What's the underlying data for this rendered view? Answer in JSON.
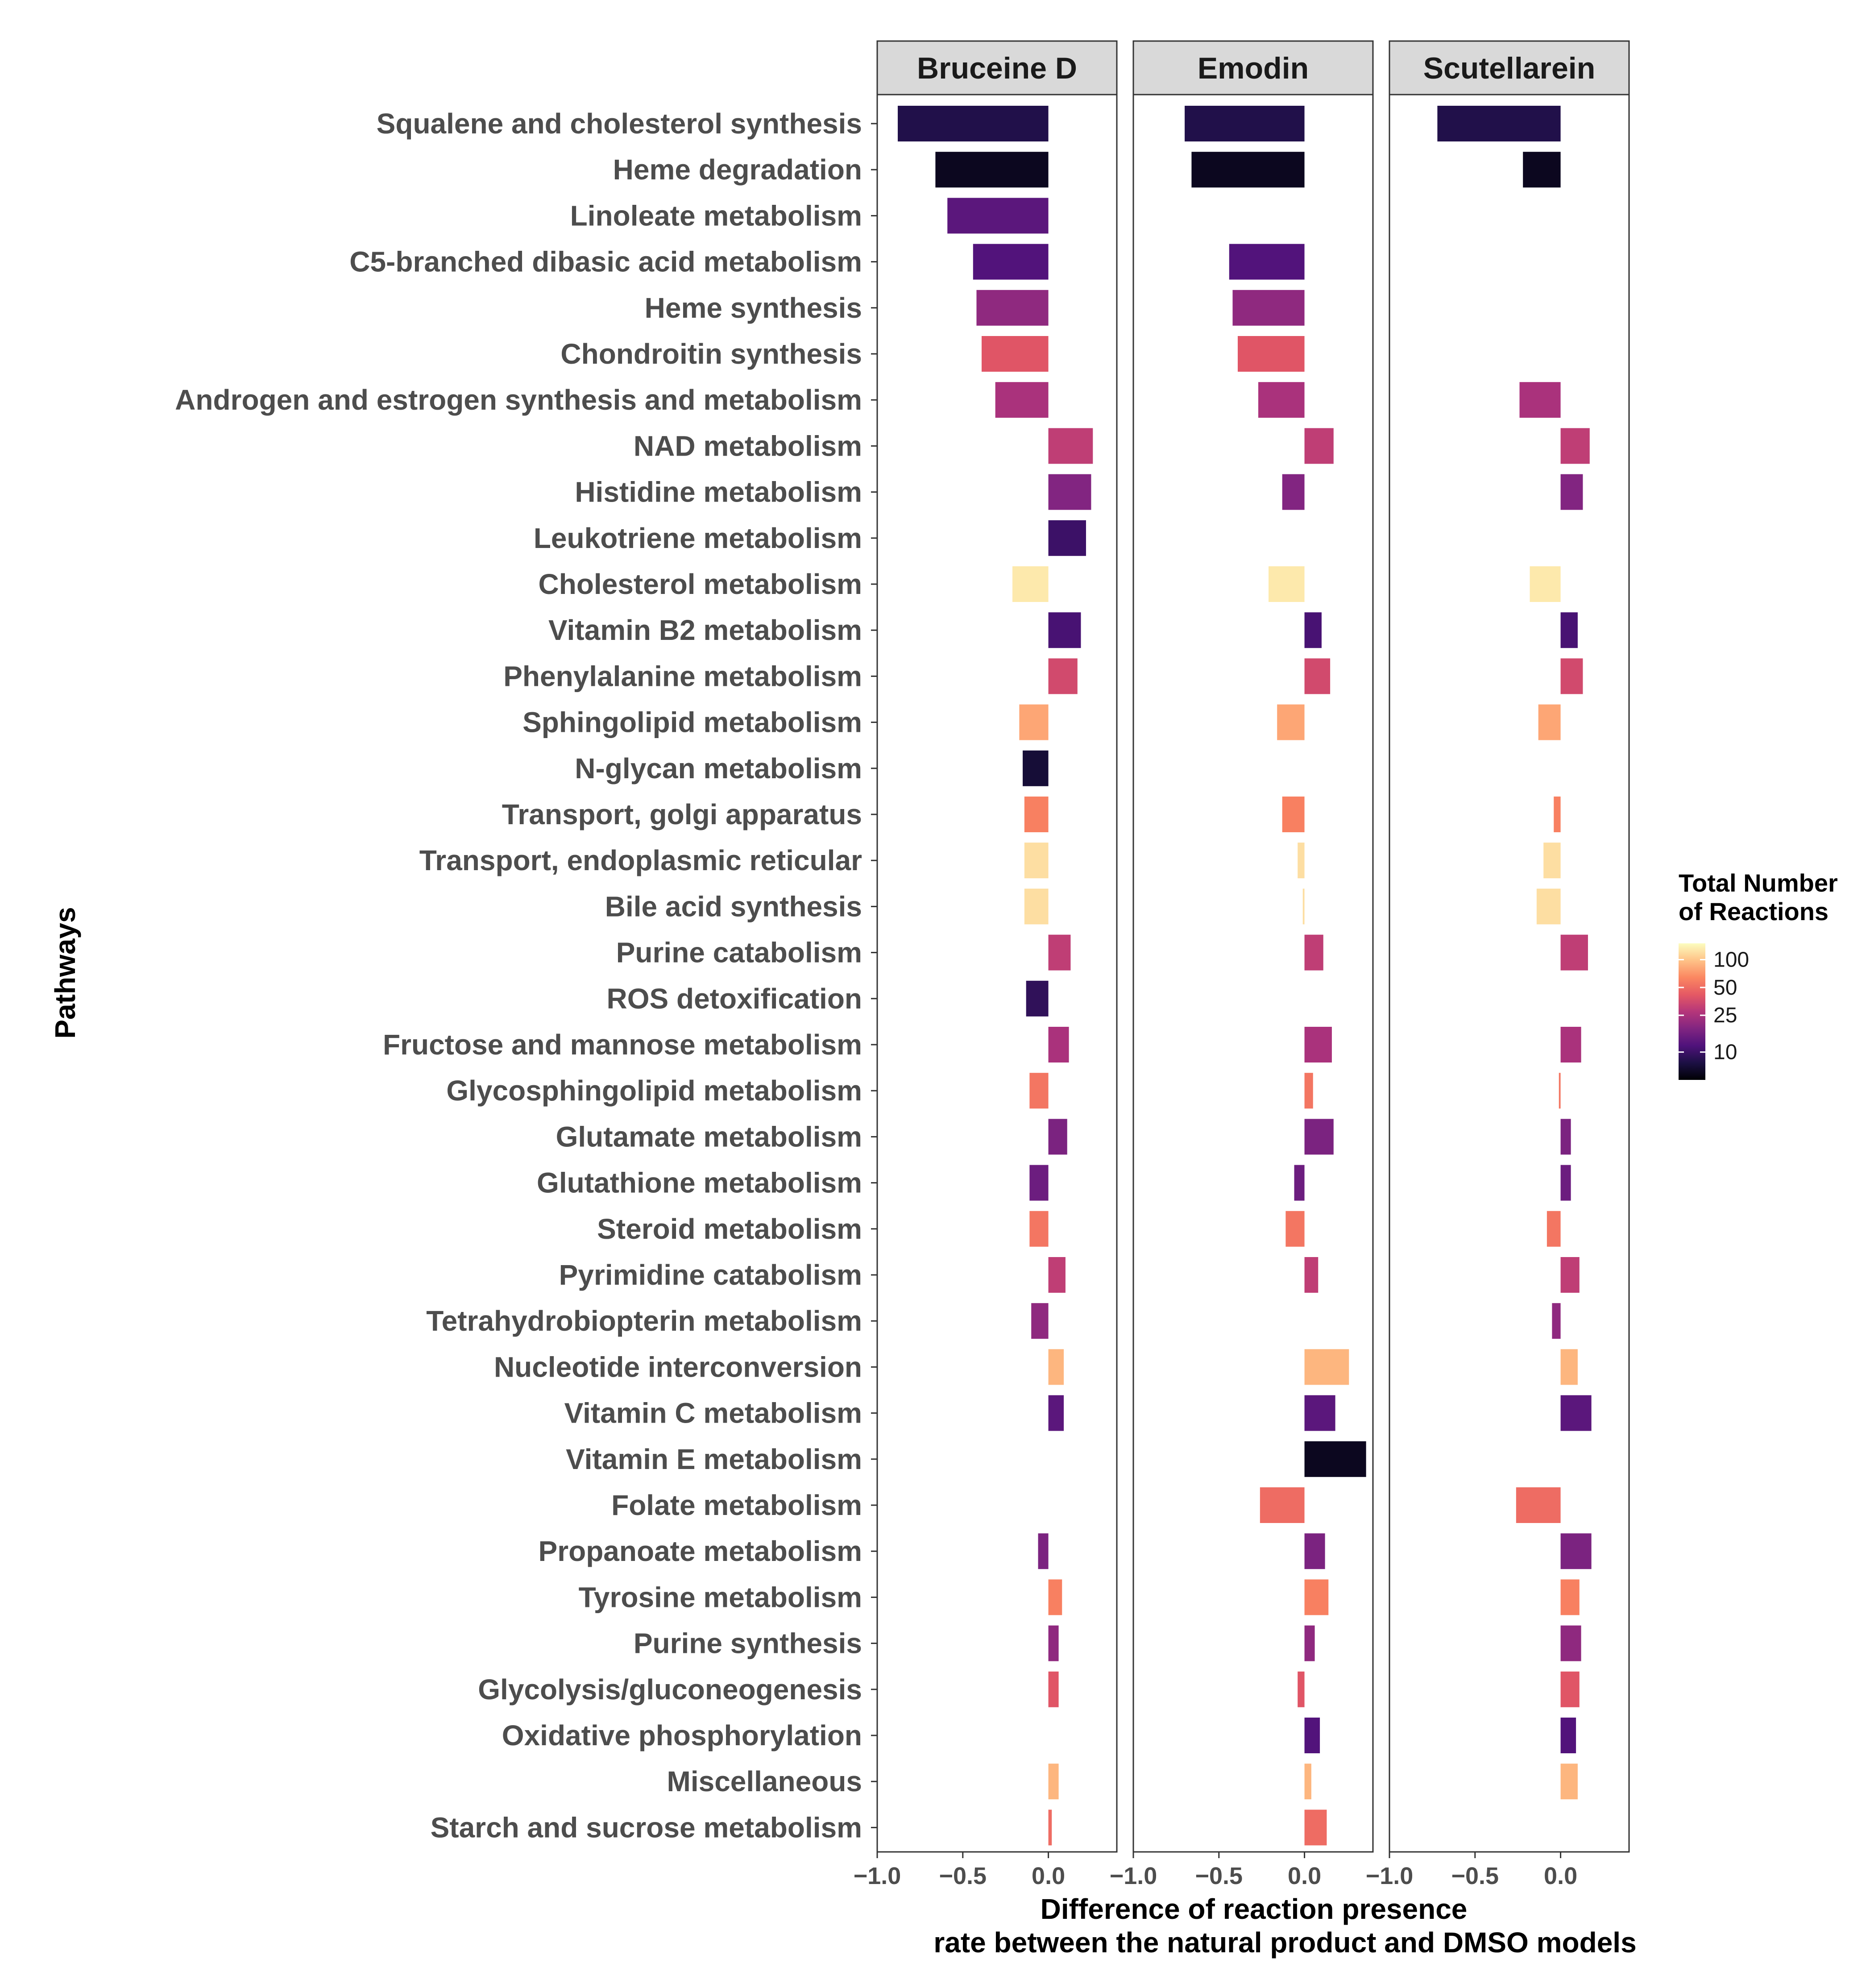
{
  "chart_data": {
    "type": "bar",
    "orientation": "horizontal",
    "ylabel": "Pathways",
    "xlabel_lines": [
      "Difference of reaction presence",
      "rate between the natural product and DMSO models"
    ],
    "xlim": [
      -1.0,
      0.4
    ],
    "xticks": [
      -1.0,
      -0.5,
      0.0
    ],
    "xtick_labels": [
      "−1.0",
      "−0.5",
      "0.0"
    ],
    "categories": [
      "Squalene and cholesterol synthesis",
      "Heme degradation",
      "Linoleate metabolism",
      "C5-branched dibasic acid metabolism",
      "Heme synthesis",
      "Chondroitin synthesis",
      "Androgen and estrogen synthesis and metabolism",
      "NAD metabolism",
      "Histidine metabolism",
      "Leukotriene metabolism",
      "Cholesterol metabolism",
      "Vitamin B2 metabolism",
      "Phenylalanine metabolism",
      "Sphingolipid metabolism",
      "N-glycan metabolism",
      "Transport, golgi apparatus",
      "Transport, endoplasmic reticular",
      "Bile acid synthesis",
      "Purine catabolism",
      "ROS detoxification",
      "Fructose and mannose metabolism",
      "Glycosphingolipid metabolism",
      "Glutamate metabolism",
      "Glutathione metabolism",
      "Steroid metabolism",
      "Pyrimidine catabolism",
      "Tetrahydrobiopterin metabolism",
      "Nucleotide interconversion",
      "Vitamin C metabolism",
      "Vitamin E metabolism",
      "Folate metabolism",
      "Propanoate metabolism",
      "Tyrosine metabolism",
      "Purine synthesis",
      "Glycolysis/gluconeogenesis",
      "Oxidative phosphorylation",
      "Miscellaneous",
      "Starch and sucrose metabolism"
    ],
    "total_reactions": [
      8,
      6,
      13,
      12,
      20,
      40,
      25,
      30,
      18,
      10,
      130,
      11,
      35,
      80,
      7,
      60,
      120,
      120,
      30,
      9,
      25,
      55,
      17,
      15,
      55,
      30,
      20,
      90,
      13,
      6,
      50,
      17,
      60,
      20,
      40,
      12,
      90,
      50
    ],
    "series": [
      {
        "name": "Bruceine D",
        "values": [
          -0.88,
          -0.66,
          -0.59,
          -0.44,
          -0.42,
          -0.39,
          -0.31,
          0.26,
          0.25,
          0.22,
          -0.21,
          0.19,
          0.17,
          -0.17,
          -0.15,
          -0.14,
          -0.14,
          -0.14,
          0.13,
          -0.13,
          0.12,
          -0.11,
          0.11,
          -0.11,
          -0.11,
          0.1,
          -0.1,
          0.09,
          0.09,
          null,
          null,
          -0.06,
          0.08,
          0.06,
          0.06,
          null,
          0.06,
          0.02
        ]
      },
      {
        "name": "Emodin",
        "values": [
          -0.7,
          -0.66,
          null,
          -0.44,
          -0.42,
          -0.39,
          -0.27,
          0.17,
          -0.13,
          null,
          -0.21,
          0.1,
          0.15,
          -0.16,
          null,
          -0.13,
          -0.04,
          -0.01,
          0.11,
          null,
          0.16,
          0.05,
          0.17,
          -0.06,
          -0.11,
          0.08,
          null,
          0.26,
          0.18,
          0.36,
          -0.26,
          0.12,
          0.14,
          0.06,
          -0.04,
          0.09,
          0.04,
          0.13
        ]
      },
      {
        "name": "Scutellarein",
        "values": [
          -0.72,
          -0.22,
          null,
          null,
          null,
          null,
          -0.24,
          0.17,
          0.13,
          null,
          -0.18,
          0.1,
          0.13,
          -0.13,
          null,
          -0.04,
          -0.1,
          -0.14,
          0.16,
          null,
          0.12,
          -0.01,
          0.06,
          0.06,
          -0.08,
          0.11,
          -0.05,
          0.1,
          0.18,
          null,
          -0.26,
          0.18,
          0.11,
          0.12,
          0.11,
          0.09,
          0.1,
          null
        ]
      }
    ],
    "legend": {
      "title_lines": [
        "Total Number",
        "of Reactions"
      ],
      "ticks": [
        100,
        50,
        25,
        10
      ],
      "tick_labels": [
        "100",
        "50",
        "25",
        "10"
      ],
      "range": [
        5,
        150
      ],
      "scale": "log",
      "position": "right",
      "colormap": "magma"
    }
  }
}
